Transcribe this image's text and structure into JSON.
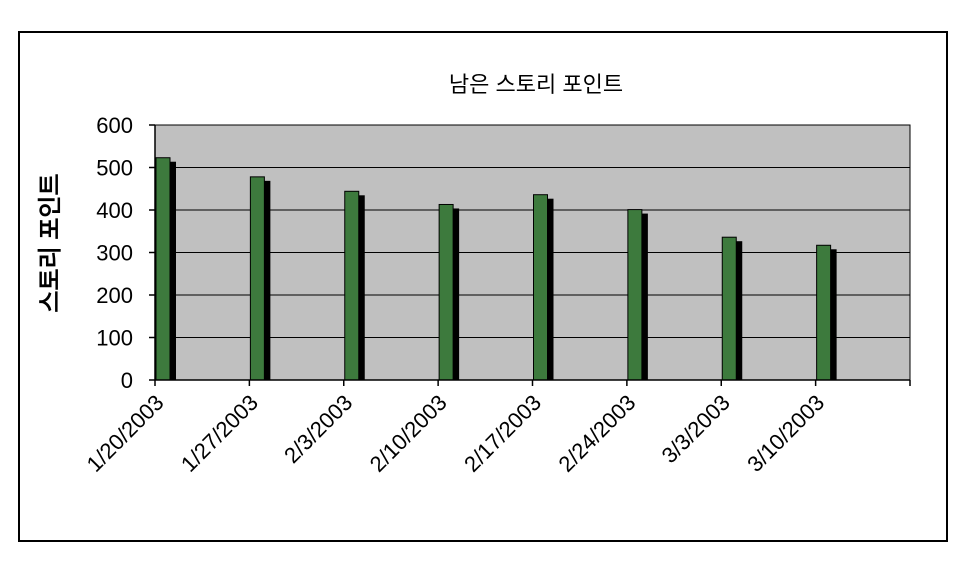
{
  "chart_data": {
    "type": "bar",
    "title": "남은 스토리 포인트",
    "xlabel": "",
    "ylabel": "스토리 포인트",
    "categories": [
      "1/20/2003",
      "1/27/2003",
      "2/3/2003",
      "2/10/2003",
      "2/17/2003",
      "2/24/2003",
      "3/3/2003",
      "3/10/2003"
    ],
    "series": [
      {
        "values": [
          523,
          478,
          444,
          413,
          436,
          401,
          336,
          317
        ]
      }
    ],
    "ylim": [
      0,
      600
    ],
    "yticks": [
      "0",
      "100",
      "200",
      "300",
      "400",
      "500",
      "600"
    ],
    "grid": true,
    "legend": "none",
    "colors": {
      "bar": "#3d7a3d",
      "bar_shadow": "#000000",
      "plot_background": "#c0c0c0",
      "gridline": "#000000"
    }
  }
}
